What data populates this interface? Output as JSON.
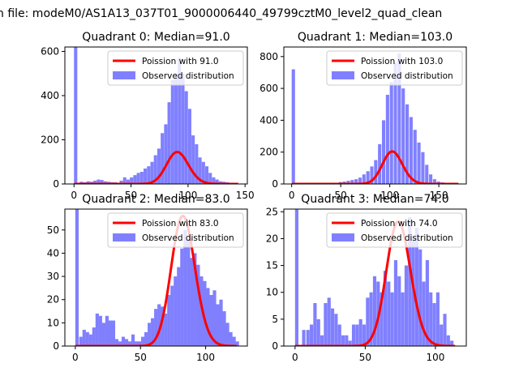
{
  "suptitle": "n file: modeM0/AS1A13_037T01_9000006440_49799cztM0_level2_quad_clean",
  "colors": {
    "bars": "#8080ff",
    "curve": "#ff0000"
  },
  "chart_data": [
    {
      "type": "bar",
      "title": "Quadrant 0: Median=91.0",
      "xlim": [
        -8,
        152
      ],
      "ylim": [
        0,
        620
      ],
      "xticks": [
        0,
        50,
        100,
        150
      ],
      "yticks": [
        0,
        200,
        400,
        600
      ],
      "bin_width": 2.9,
      "bins_x": [
        0,
        5,
        8,
        11,
        14,
        17,
        20,
        23,
        26,
        29,
        32,
        35,
        40,
        43,
        46,
        49,
        52,
        55,
        58,
        61,
        64,
        67,
        70,
        73,
        76,
        79,
        82,
        85,
        88,
        91,
        94,
        97,
        100,
        103,
        106,
        109,
        112,
        115,
        118,
        121,
        124,
        127,
        130,
        133,
        136,
        139
      ],
      "bins_y": [
        620,
        10,
        8,
        12,
        10,
        15,
        20,
        18,
        12,
        10,
        8,
        8,
        15,
        30,
        20,
        30,
        40,
        50,
        55,
        70,
        80,
        100,
        130,
        160,
        230,
        270,
        370,
        470,
        500,
        570,
        500,
        420,
        340,
        220,
        180,
        120,
        100,
        80,
        50,
        30,
        20,
        12,
        10,
        8,
        5,
        3
      ],
      "series": [
        {
          "name": "Poission with 91.0",
          "type": "line",
          "mu": 91.0,
          "scale": 3460
        },
        {
          "name": "Observed distribution",
          "type": "bar"
        }
      ],
      "legend": "top-right"
    },
    {
      "type": "bar",
      "title": "Quadrant 1: Median=103.0",
      "xlim": [
        -8,
        178
      ],
      "ylim": [
        0,
        860
      ],
      "xticks": [
        0,
        50,
        100,
        150
      ],
      "yticks": [
        0,
        200,
        400,
        600,
        800
      ],
      "bin_width": 3.4,
      "bins_x": [
        0,
        48,
        52,
        56,
        60,
        64,
        68,
        72,
        76,
        80,
        84,
        88,
        92,
        96,
        100,
        104,
        108,
        112,
        116,
        120,
        124,
        128,
        132,
        136,
        140,
        144,
        148,
        152,
        160,
        170
      ],
      "bins_y": [
        720,
        12,
        15,
        20,
        25,
        30,
        40,
        60,
        80,
        110,
        150,
        250,
        400,
        560,
        640,
        760,
        820,
        600,
        500,
        420,
        340,
        260,
        200,
        120,
        60,
        30,
        15,
        10,
        5,
        3
      ],
      "series": [
        {
          "name": "Poission with 103.0",
          "type": "line",
          "mu": 103.0,
          "scale": 5200
        },
        {
          "name": "Observed distribution",
          "type": "bar"
        }
      ],
      "legend": "top-right"
    },
    {
      "type": "bar",
      "title": "Quadrant 2: Median=83.0",
      "xlim": [
        -8,
        132
      ],
      "ylim": [
        0,
        59
      ],
      "xticks": [
        0,
        50,
        100
      ],
      "yticks": [
        0,
        10,
        20,
        30,
        40,
        50
      ],
      "bin_width": 2.6,
      "bins_x": [
        0,
        3,
        5.5,
        8,
        10.5,
        13,
        15.5,
        18,
        20.5,
        23,
        25.5,
        28,
        30.5,
        33,
        35.5,
        38,
        40.5,
        43,
        45.5,
        48,
        50.5,
        53,
        55.5,
        58,
        60.5,
        63,
        65.5,
        68,
        70.5,
        73,
        75.5,
        78,
        80.5,
        83,
        85.5,
        88,
        90.5,
        93,
        95.5,
        98,
        100.5,
        103,
        105.5,
        108,
        110.5,
        113,
        115.5,
        118,
        120.5,
        123
      ],
      "bins_y": [
        59,
        4,
        7,
        6,
        5,
        8,
        14,
        13,
        10,
        13,
        11,
        11,
        3,
        2,
        4,
        3,
        2,
        5,
        2,
        2,
        4,
        6,
        10,
        12,
        16,
        18,
        17,
        14,
        22,
        26,
        30,
        34,
        42,
        50,
        46,
        38,
        40,
        35,
        30,
        28,
        25,
        22,
        24,
        18,
        20,
        15,
        10,
        6,
        4,
        2
      ],
      "series": [
        {
          "name": "Poission with 83.0",
          "type": "line",
          "mu": 83.0,
          "scale": 1280
        },
        {
          "name": "Observed distribution",
          "type": "bar"
        }
      ],
      "legend": "top-right"
    },
    {
      "type": "bar",
      "title": "Quadrant 3: Median=74.0",
      "xlim": [
        -8,
        122
      ],
      "ylim": [
        0,
        25.5
      ],
      "xticks": [
        0,
        50,
        100
      ],
      "yticks": [
        0,
        5,
        10,
        15,
        20,
        25
      ],
      "bin_width": 2.4,
      "bins_x": [
        0,
        5,
        8,
        10.5,
        13,
        15.5,
        18,
        20.5,
        23,
        25.5,
        28,
        30.5,
        33,
        35.5,
        38,
        40.5,
        43,
        45.5,
        48,
        50.5,
        53,
        55.5,
        58,
        60.5,
        63,
        65.5,
        68,
        70.5,
        73,
        75.5,
        78,
        80.5,
        83,
        85.5,
        88,
        90.5,
        93,
        95.5,
        98,
        100.5,
        103,
        105.5,
        108,
        110.5
      ],
      "bins_y": [
        25.5,
        3,
        3,
        4,
        8,
        5,
        2,
        8,
        9,
        7,
        6,
        4,
        2,
        2,
        1,
        4,
        4,
        5,
        4,
        9,
        10,
        13,
        12,
        10,
        14,
        12,
        10,
        16,
        13,
        10,
        15,
        24,
        20,
        22,
        18,
        12,
        16,
        10,
        8,
        10,
        4,
        6,
        2,
        1
      ],
      "series": [
        {
          "name": "Poission with 74.0",
          "type": "line",
          "mu": 74.0,
          "scale": 500
        },
        {
          "name": "Observed distribution",
          "type": "bar"
        }
      ],
      "legend": "top-right"
    }
  ]
}
